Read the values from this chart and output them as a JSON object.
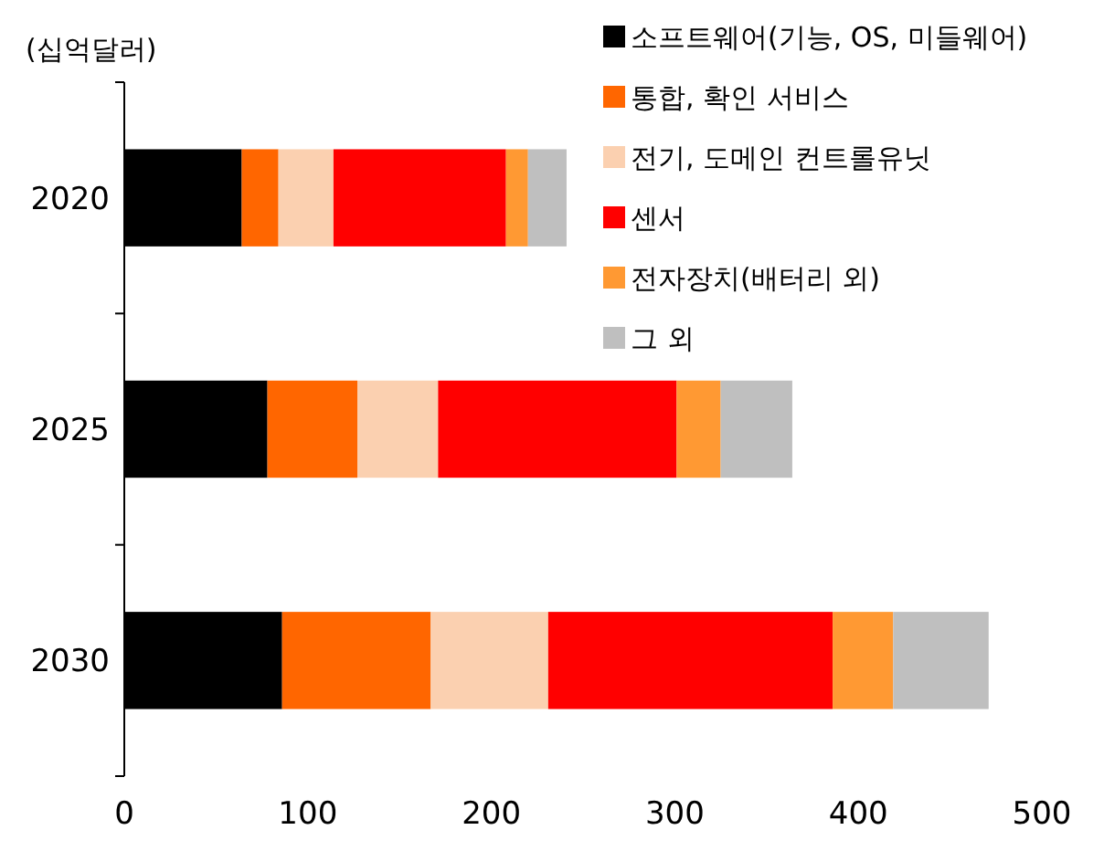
{
  "chart_data": {
    "type": "bar",
    "orientation": "horizontal",
    "stacked": true,
    "ylabel": "(십억달러)",
    "categories": [
      "2020",
      "2025",
      "2030"
    ],
    "series": [
      {
        "name": "소프트웨어(기능,  OS, 미들웨어)",
        "color": "#000000",
        "values": [
          64,
          78,
          86
        ]
      },
      {
        "name": "통합, 확인 서비스",
        "color": "#ff6600",
        "values": [
          20,
          49,
          81
        ]
      },
      {
        "name": "전기, 도메인 컨트롤유닛",
        "color": "#fbd0b0",
        "values": [
          30,
          44,
          64
        ]
      },
      {
        "name": "센서",
        "color": "#ff0000",
        "values": [
          94,
          130,
          155
        ]
      },
      {
        "name": "전자장치(배터리 외)",
        "color": "#ff9933",
        "values": [
          12,
          24,
          33
        ]
      },
      {
        "name": "그 외",
        "color": "#bfbfbf",
        "values": [
          21,
          39,
          52
        ]
      }
    ],
    "xlim": [
      0,
      500
    ],
    "xticks": [
      0,
      100,
      200,
      300,
      400,
      500
    ],
    "legend": "top right",
    "grid": false
  }
}
